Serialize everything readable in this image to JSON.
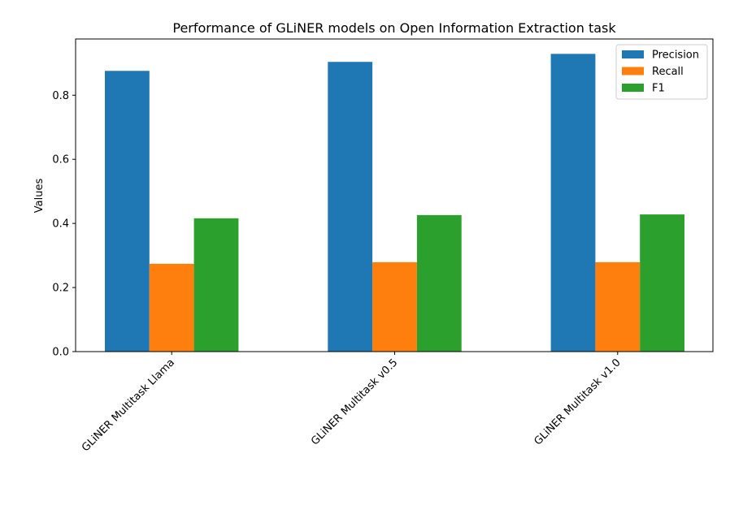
{
  "chart_data": {
    "type": "bar",
    "title": "Performance of GLiNER models on Open Information Extraction task",
    "xlabel": "",
    "ylabel": "Values",
    "categories": [
      "GLiNER Multitask Llama",
      "GLiNER Multitask v0.5",
      "GLiNER Multitask v1.0"
    ],
    "series": [
      {
        "name": "Precision",
        "color": "#1f77b4",
        "values": [
          0.876,
          0.904,
          0.929
        ]
      },
      {
        "name": "Recall",
        "color": "#ff7f0e",
        "values": [
          0.274,
          0.279,
          0.279
        ]
      },
      {
        "name": "F1",
        "color": "#2ca02c",
        "values": [
          0.416,
          0.426,
          0.428
        ]
      }
    ],
    "ylim": [
      0,
      0.9755
    ],
    "yticks": [
      0.0,
      0.2,
      0.4,
      0.6,
      0.8
    ],
    "ytick_labels": [
      "0.0",
      "0.2",
      "0.4",
      "0.6",
      "0.8"
    ],
    "grid": false,
    "legend_position": "top-right"
  }
}
